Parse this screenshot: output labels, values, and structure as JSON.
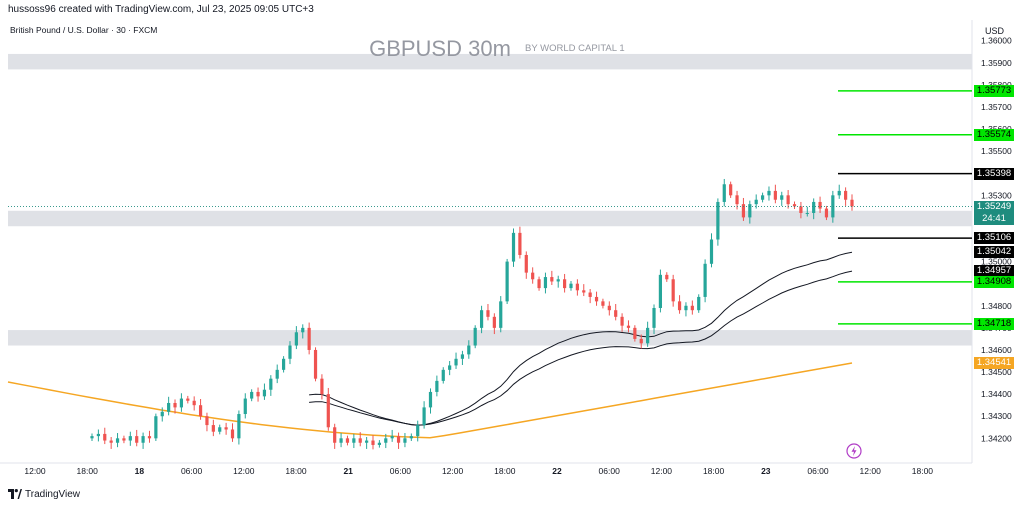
{
  "header": {
    "credit": "hussoss96 created with TradingView.com, Jul 23, 2025 09:05 UTC+3"
  },
  "instrument": {
    "name": "British Pound / U.S. Dollar · 30 · FXCM",
    "title": "GBPUSD 30m",
    "subtitle": "BY WORLD CAPITAL 1",
    "currency": "USD"
  },
  "footer": {
    "brand": "TradingView"
  },
  "icons": {
    "brand_logo": "tradingview-logo-icon",
    "alert": "lightning-bolt-icon"
  },
  "colors": {
    "bull": "#26a69a",
    "bear": "#ef5350",
    "green_level": "#00e600",
    "orange_ma": "#f5a623",
    "zone": "#dfe1e6",
    "black": "#000000",
    "current_price": "#1e8c7e"
  },
  "chart_data": {
    "type": "candlestick",
    "title": "GBPUSD 30m",
    "ylabel": "USD",
    "ylim": [
      1.3412,
      1.3608
    ],
    "x_tick_labels": [
      "12:00",
      "18:00",
      "18",
      "06:00",
      "12:00",
      "18:00",
      "21",
      "06:00",
      "12:00",
      "18:00",
      "22",
      "06:00",
      "12:00",
      "18:00",
      "23",
      "06:00",
      "12:00",
      "18:00"
    ],
    "y_tick_labels": [
      "1.36000",
      "1.35900",
      "1.35800",
      "1.35700",
      "1.35600",
      "1.35500",
      "1.35300",
      "1.35000",
      "1.34800",
      "1.34700",
      "1.34600",
      "1.34500",
      "1.34400",
      "1.34300",
      "1.34200"
    ],
    "price_labels": [
      {
        "value": "1.35773",
        "price": 1.35773,
        "color": "green"
      },
      {
        "value": "1.35574",
        "price": 1.35574,
        "color": "green"
      },
      {
        "value": "1.35398",
        "price": 1.35398,
        "color": "black"
      },
      {
        "value": "1.35249",
        "price": 1.35249,
        "color": "current",
        "countdown": "24:41"
      },
      {
        "value": "1.35106",
        "price": 1.35106,
        "color": "black"
      },
      {
        "value": "1.35042",
        "price": 1.35042,
        "color": "black"
      },
      {
        "value": "1.34957",
        "price": 1.34957,
        "color": "black"
      },
      {
        "value": "1.34908",
        "price": 1.34908,
        "color": "green"
      },
      {
        "value": "1.34718",
        "price": 1.34718,
        "color": "green"
      },
      {
        "value": "1.34541",
        "price": 1.34541,
        "color": "orange"
      }
    ],
    "zones": [
      {
        "from": 1.3587,
        "to": 1.3594
      },
      {
        "from": 1.3516,
        "to": 1.3523
      },
      {
        "from": 1.3462,
        "to": 1.3469
      }
    ],
    "candles_close": [
      1.3421,
      1.3422,
      1.3419,
      1.3418,
      1.342,
      1.3419,
      1.3421,
      1.3418,
      1.3421,
      1.342,
      1.343,
      1.3432,
      1.3436,
      1.3434,
      1.3438,
      1.3437,
      1.3435,
      1.343,
      1.3426,
      1.3423,
      1.3425,
      1.3424,
      1.342,
      1.3431,
      1.3438,
      1.3441,
      1.3439,
      1.3442,
      1.3447,
      1.3451,
      1.3456,
      1.3462,
      1.3468,
      1.347,
      1.346,
      1.3447,
      1.344,
      1.3425,
      1.3418,
      1.342,
      1.3418,
      1.342,
      1.3418,
      1.3419,
      1.3417,
      1.3418,
      1.342,
      1.3421,
      1.3418,
      1.342,
      1.3421,
      1.3426,
      1.3434,
      1.3441,
      1.3446,
      1.3451,
      1.3453,
      1.3456,
      1.3458,
      1.3462,
      1.347,
      1.3478,
      1.3475,
      1.347,
      1.3482,
      1.35,
      1.3513,
      1.3503,
      1.3495,
      1.3492,
      1.3488,
      1.3493,
      1.3491,
      1.3492,
      1.3488,
      1.349,
      1.3487,
      1.3486,
      1.3484,
      1.3482,
      1.348,
      1.3478,
      1.3475,
      1.3471,
      1.347,
      1.3465,
      1.3463,
      1.347,
      1.3479,
      1.3494,
      1.3492,
      1.3482,
      1.3478,
      1.348,
      1.3478,
      1.3484,
      1.3499,
      1.351,
      1.3527,
      1.3535,
      1.353,
      1.3526,
      1.352,
      1.3526,
      1.3528,
      1.353,
      1.3532,
      1.3528,
      1.353,
      1.3526,
      1.3525,
      1.3522,
      1.3522,
      1.3527,
      1.3524,
      1.352,
      1.353,
      1.3532,
      1.3528,
      1.3525
    ],
    "series": [
      {
        "name": "EMA-fast",
        "color": "black",
        "end": 1.35042
      },
      {
        "name": "EMA-slow",
        "color": "black",
        "end": 1.34957
      },
      {
        "name": "MA-long",
        "color": "orange",
        "end": 1.34541
      }
    ],
    "grid": false,
    "legend": "none"
  }
}
